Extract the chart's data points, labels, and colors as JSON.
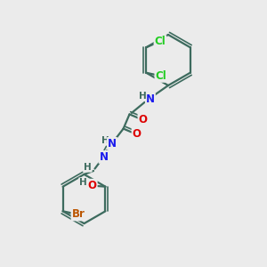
{
  "bg_color": "#ebebeb",
  "bond_color": "#3d6b5e",
  "bond_width": 1.6,
  "atom_colors": {
    "C": "#3d6b5e",
    "N": "#1a1aee",
    "O": "#dd0000",
    "Br": "#bb5500",
    "Cl": "#22cc22",
    "H": "#3d6b5e"
  },
  "font_size": 8.5
}
